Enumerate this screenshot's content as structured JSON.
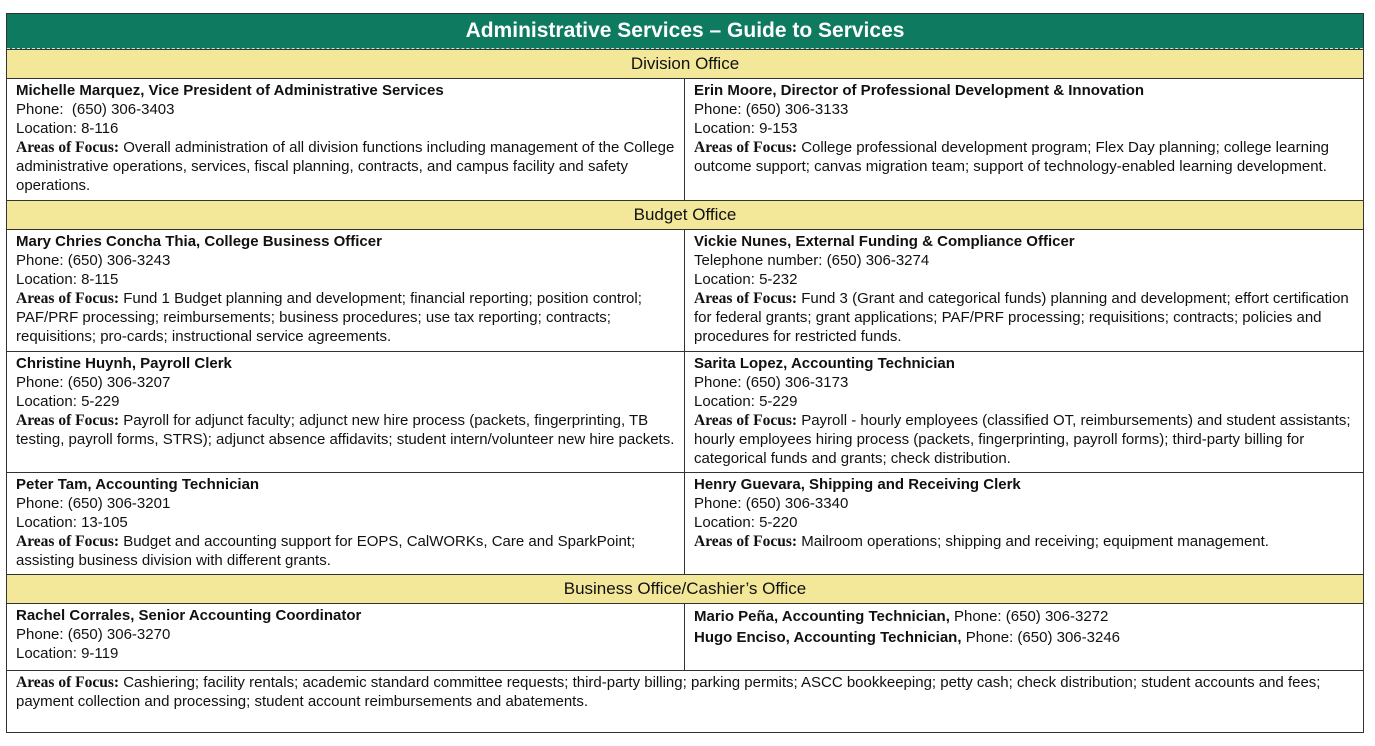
{
  "title": "Administrative Services – Guide to Services",
  "areas_label": "Areas of Focus:",
  "sections": [
    {
      "heading": "Division Office",
      "rows": [
        [
          {
            "name": "Michelle Marquez, Vice President of Administrative Services",
            "phone_label": "Phone:",
            "phone": "(650) 306-3403",
            "location_label": "Location:",
            "location": "8-116",
            "focus": "Overall administration of all division functions including management of the College administrative operations, services, fiscal planning, contracts, and campus facility and safety operations."
          },
          {
            "name": "Erin Moore, Director of Professional Development & Innovation",
            "phone_label": "Phone:",
            "phone": "(650) 306-3133",
            "location_label": "Location:",
            "location": "9-153",
            "focus": "College professional development program; Flex Day planning; college learning outcome support; canvas migration team; support of technology-enabled learning development."
          }
        ]
      ]
    },
    {
      "heading": "Budget Office",
      "rows": [
        [
          {
            "name": "Mary Chries Concha Thia, College Business Officer",
            "phone_label": "Phone:",
            "phone": "(650) 306-3243",
            "location_label": "Location:",
            "location": "8-115",
            "focus": "Fund 1 Budget planning and development; financial reporting; position control; PAF/PRF processing; reimbursements; business procedures; use tax reporting; contracts; requisitions; pro-cards; instructional service agreements."
          },
          {
            "name": "Vickie Nunes, External Funding & Compliance Officer",
            "phone_label": "Telephone number:",
            "phone": "(650) 306-3274",
            "location_label": "Location:",
            "location": "5-232",
            "focus": "Fund 3 (Grant and categorical funds) planning and development; effort certification for federal grants; grant applications; PAF/PRF processing; requisitions; contracts; policies and procedures for restricted funds."
          }
        ],
        [
          {
            "name": "Christine Huynh, Payroll Clerk",
            "phone_label": "Phone:",
            "phone": "(650) 306-3207",
            "location_label": "Location:",
            "location": "5-229",
            "focus": "Payroll for adjunct faculty; adjunct new hire process (packets, fingerprinting, TB testing, payroll forms, STRS); adjunct absence affidavits; student intern/volunteer new hire packets."
          },
          {
            "name": "Sarita Lopez, Accounting Technician",
            "phone_label": "Phone:",
            "phone": "(650) 306-3173",
            "location_label": "Location:",
            "location": "5-229",
            "focus": "Payroll - hourly employees (classified OT, reimbursements) and student assistants; hourly employees hiring process (packets, fingerprinting, payroll forms); third-party billing for categorical funds and grants; check distribution."
          }
        ],
        [
          {
            "name": "Peter Tam, Accounting Technician",
            "phone_label": "Phone:",
            "phone": "(650) 306-3201",
            "location_label": "Location:",
            "location": "13-105",
            "focus": "Budget and accounting support for EOPS, CalWORKs, Care and SparkPoint; assisting business division with different grants."
          },
          {
            "name": "Henry Guevara, Shipping and Receiving Clerk",
            "phone_label": "Phone:",
            "phone": "(650) 306-3340",
            "location_label": "Location:",
            "location": "5-220",
            "focus": "Mailroom operations; shipping and receiving; equipment management."
          }
        ]
      ]
    },
    {
      "heading": "Business Office/Cashier’s Office",
      "left": {
        "name": "Rachel Corrales, Senior Accounting Coordinator",
        "phone_label": "Phone:",
        "phone": "(650) 306-3270",
        "location_label": "Location:",
        "location": "9-119"
      },
      "right": [
        {
          "name": "Mario Peña, Accounting Technician,",
          "phone_label": "Phone:",
          "phone": "(650) 306-3272"
        },
        {
          "name": "Hugo Enciso, Accounting Technician,",
          "phone_label": "Phone:",
          "phone": "(650) 306-3246"
        }
      ],
      "focus": "Cashiering; facility rentals; academic standard committee requests; third-party billing; parking permits; ASCC bookkeeping; petty cash; check distribution; student accounts and fees; payment collection and processing; student account reimbursements and abatements."
    }
  ]
}
